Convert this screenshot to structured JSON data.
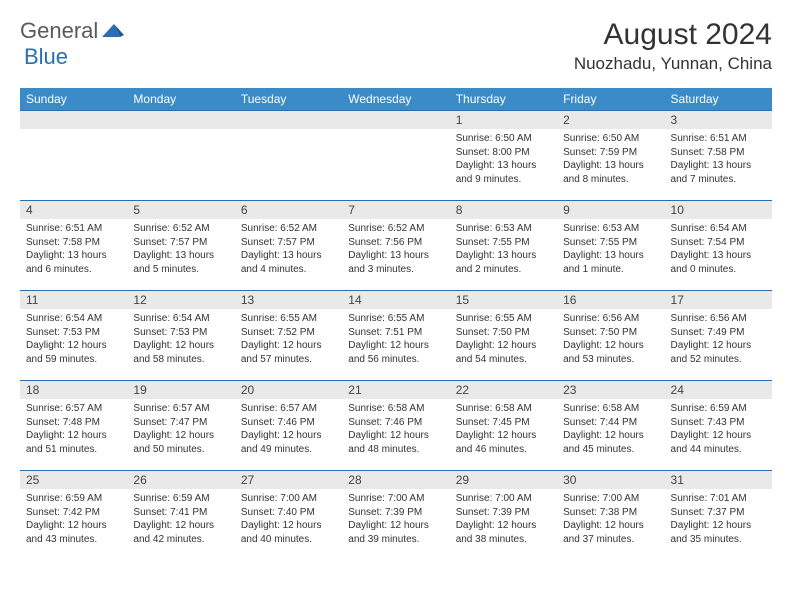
{
  "logo": {
    "general": "General",
    "blue": "Blue"
  },
  "title": "August 2024",
  "location": "Nuozhadu, Yunnan, China",
  "header_bg": "#3b8bc9",
  "border_color": "#2a6fb0",
  "daynum_bg": "#e9e9e9",
  "weekdays": [
    "Sunday",
    "Monday",
    "Tuesday",
    "Wednesday",
    "Thursday",
    "Friday",
    "Saturday"
  ],
  "weeks": [
    [
      null,
      null,
      null,
      null,
      {
        "n": "1",
        "sr": "6:50 AM",
        "ss": "8:00 PM",
        "dl": "13 hours and 9 minutes."
      },
      {
        "n": "2",
        "sr": "6:50 AM",
        "ss": "7:59 PM",
        "dl": "13 hours and 8 minutes."
      },
      {
        "n": "3",
        "sr": "6:51 AM",
        "ss": "7:58 PM",
        "dl": "13 hours and 7 minutes."
      }
    ],
    [
      {
        "n": "4",
        "sr": "6:51 AM",
        "ss": "7:58 PM",
        "dl": "13 hours and 6 minutes."
      },
      {
        "n": "5",
        "sr": "6:52 AM",
        "ss": "7:57 PM",
        "dl": "13 hours and 5 minutes."
      },
      {
        "n": "6",
        "sr": "6:52 AM",
        "ss": "7:57 PM",
        "dl": "13 hours and 4 minutes."
      },
      {
        "n": "7",
        "sr": "6:52 AM",
        "ss": "7:56 PM",
        "dl": "13 hours and 3 minutes."
      },
      {
        "n": "8",
        "sr": "6:53 AM",
        "ss": "7:55 PM",
        "dl": "13 hours and 2 minutes."
      },
      {
        "n": "9",
        "sr": "6:53 AM",
        "ss": "7:55 PM",
        "dl": "13 hours and 1 minute."
      },
      {
        "n": "10",
        "sr": "6:54 AM",
        "ss": "7:54 PM",
        "dl": "13 hours and 0 minutes."
      }
    ],
    [
      {
        "n": "11",
        "sr": "6:54 AM",
        "ss": "7:53 PM",
        "dl": "12 hours and 59 minutes."
      },
      {
        "n": "12",
        "sr": "6:54 AM",
        "ss": "7:53 PM",
        "dl": "12 hours and 58 minutes."
      },
      {
        "n": "13",
        "sr": "6:55 AM",
        "ss": "7:52 PM",
        "dl": "12 hours and 57 minutes."
      },
      {
        "n": "14",
        "sr": "6:55 AM",
        "ss": "7:51 PM",
        "dl": "12 hours and 56 minutes."
      },
      {
        "n": "15",
        "sr": "6:55 AM",
        "ss": "7:50 PM",
        "dl": "12 hours and 54 minutes."
      },
      {
        "n": "16",
        "sr": "6:56 AM",
        "ss": "7:50 PM",
        "dl": "12 hours and 53 minutes."
      },
      {
        "n": "17",
        "sr": "6:56 AM",
        "ss": "7:49 PM",
        "dl": "12 hours and 52 minutes."
      }
    ],
    [
      {
        "n": "18",
        "sr": "6:57 AM",
        "ss": "7:48 PM",
        "dl": "12 hours and 51 minutes."
      },
      {
        "n": "19",
        "sr": "6:57 AM",
        "ss": "7:47 PM",
        "dl": "12 hours and 50 minutes."
      },
      {
        "n": "20",
        "sr": "6:57 AM",
        "ss": "7:46 PM",
        "dl": "12 hours and 49 minutes."
      },
      {
        "n": "21",
        "sr": "6:58 AM",
        "ss": "7:46 PM",
        "dl": "12 hours and 48 minutes."
      },
      {
        "n": "22",
        "sr": "6:58 AM",
        "ss": "7:45 PM",
        "dl": "12 hours and 46 minutes."
      },
      {
        "n": "23",
        "sr": "6:58 AM",
        "ss": "7:44 PM",
        "dl": "12 hours and 45 minutes."
      },
      {
        "n": "24",
        "sr": "6:59 AM",
        "ss": "7:43 PM",
        "dl": "12 hours and 44 minutes."
      }
    ],
    [
      {
        "n": "25",
        "sr": "6:59 AM",
        "ss": "7:42 PM",
        "dl": "12 hours and 43 minutes."
      },
      {
        "n": "26",
        "sr": "6:59 AM",
        "ss": "7:41 PM",
        "dl": "12 hours and 42 minutes."
      },
      {
        "n": "27",
        "sr": "7:00 AM",
        "ss": "7:40 PM",
        "dl": "12 hours and 40 minutes."
      },
      {
        "n": "28",
        "sr": "7:00 AM",
        "ss": "7:39 PM",
        "dl": "12 hours and 39 minutes."
      },
      {
        "n": "29",
        "sr": "7:00 AM",
        "ss": "7:39 PM",
        "dl": "12 hours and 38 minutes."
      },
      {
        "n": "30",
        "sr": "7:00 AM",
        "ss": "7:38 PM",
        "dl": "12 hours and 37 minutes."
      },
      {
        "n": "31",
        "sr": "7:01 AM",
        "ss": "7:37 PM",
        "dl": "12 hours and 35 minutes."
      }
    ]
  ],
  "labels": {
    "sunrise": "Sunrise: ",
    "sunset": "Sunset: ",
    "daylight": "Daylight: "
  }
}
